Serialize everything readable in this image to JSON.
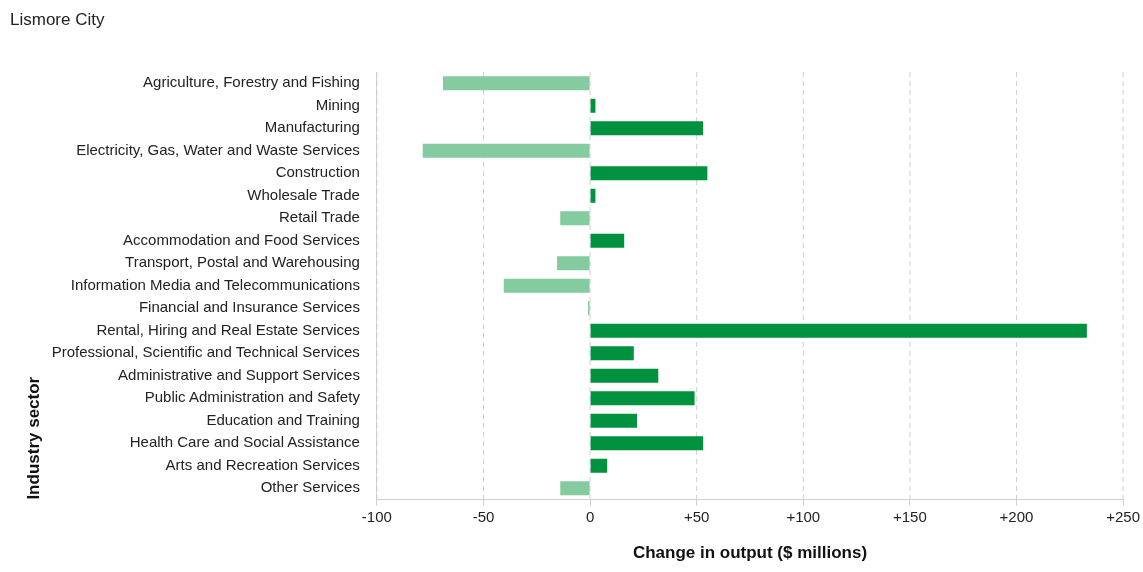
{
  "chart_data": {
    "type": "bar",
    "orientation": "horizontal",
    "title": "Lismore City",
    "xlabel": "Change in output ($ millions)",
    "ylabel": "Industry sector",
    "categories": [
      "Agriculture, Forestry and Fishing",
      "Mining",
      "Manufacturing",
      "Electricity, Gas, Water and Waste Services",
      "Construction",
      "Wholesale Trade",
      "Retail Trade",
      "Accommodation and Food Services",
      "Transport, Postal and Warehousing",
      "Information Media and Telecommunications",
      "Financial and Insurance Services",
      "Rental, Hiring and Real Estate Services",
      "Professional, Scientific and Technical Services",
      "Administrative and Support Services",
      "Public Administration and Safety",
      "Education and Training",
      "Health Care and Social Assistance",
      "Arts and Recreation Services",
      "Other Services"
    ],
    "values": [
      -69,
      2.5,
      53,
      -78.5,
      55,
      2.5,
      -14,
      16,
      -15.5,
      -40.5,
      -1,
      233,
      20.5,
      32,
      49,
      22,
      53,
      8,
      -14
    ],
    "colors": [
      "#84cca0",
      "#00923f",
      "#00923f",
      "#84cca0",
      "#00923f",
      "#00923f",
      "#84cca0",
      "#00923f",
      "#84cca0",
      "#84cca0",
      "#84cca0",
      "#00923f",
      "#00923f",
      "#00923f",
      "#00923f",
      "#00923f",
      "#00923f",
      "#00923f",
      "#84cca0"
    ],
    "xlim": [
      -100,
      250
    ],
    "xticks": [
      -100,
      -50,
      0,
      {
        "value": 50,
        "label": "+50"
      },
      {
        "value": 100,
        "label": "+100"
      },
      {
        "value": 150,
        "label": "+150"
      },
      {
        "value": 200,
        "label": "+200"
      },
      {
        "value": 250,
        "label": "+250"
      }
    ],
    "grid": "x",
    "legend": false
  }
}
